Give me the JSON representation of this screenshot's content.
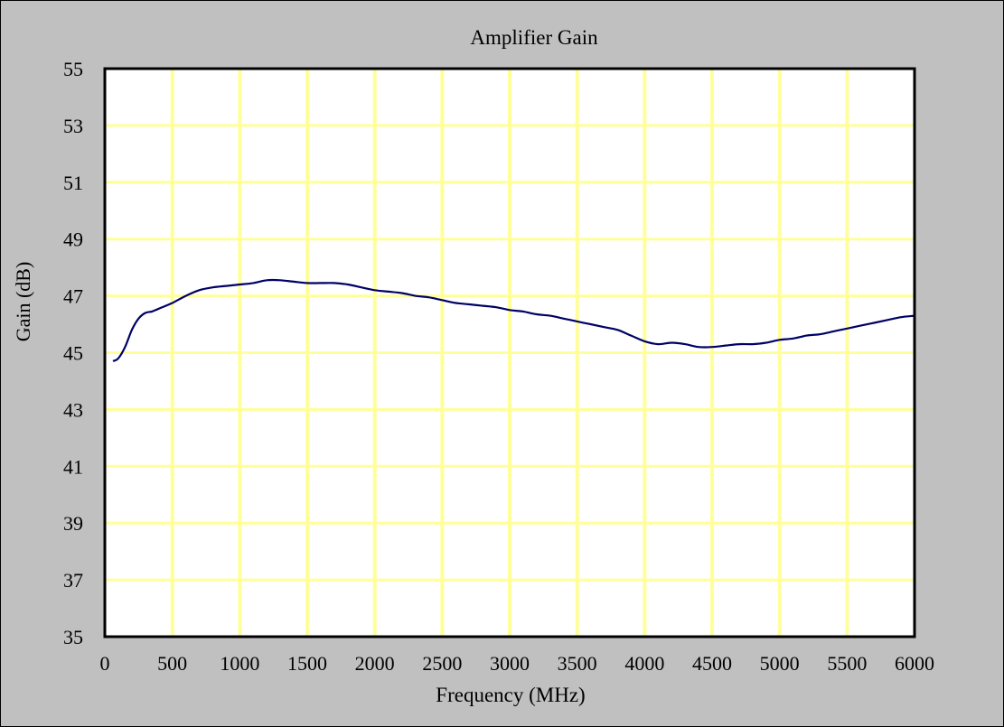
{
  "chart_data": {
    "type": "line",
    "title": "Amplifier Gain",
    "xlabel": "Frequency (MHz)",
    "ylabel": "Gain (dB)",
    "xlim": [
      0,
      6000
    ],
    "ylim": [
      35,
      55
    ],
    "xticks": [
      0,
      500,
      1000,
      1500,
      2000,
      2500,
      3000,
      3500,
      4000,
      4500,
      5000,
      5500,
      6000
    ],
    "yticks": [
      35,
      37,
      39,
      41,
      43,
      45,
      47,
      49,
      51,
      53,
      55
    ],
    "grid": true,
    "legend": "none",
    "colors": {
      "plot_background": "#ffffff",
      "gridline": "#ffff99",
      "series": "#000066",
      "frame": "#c0c0c0"
    },
    "series": [
      {
        "x": [
          60,
          100,
          150,
          200,
          250,
          300,
          350,
          400,
          500,
          600,
          700,
          800,
          900,
          1000,
          1100,
          1200,
          1300,
          1400,
          1500,
          1600,
          1700,
          1800,
          1900,
          2000,
          2100,
          2200,
          2300,
          2400,
          2500,
          2600,
          2700,
          2800,
          2900,
          3000,
          3100,
          3200,
          3300,
          3400,
          3500,
          3600,
          3700,
          3800,
          3900,
          4000,
          4100,
          4200,
          4300,
          4400,
          4500,
          4600,
          4700,
          4800,
          4900,
          5000,
          5100,
          5200,
          5300,
          5400,
          5500,
          5600,
          5700,
          5800,
          5900,
          6000
        ],
        "values": [
          44.7,
          44.8,
          45.2,
          45.8,
          46.2,
          46.4,
          46.45,
          46.55,
          46.75,
          47.0,
          47.2,
          47.3,
          47.35,
          47.4,
          47.45,
          47.55,
          47.55,
          47.5,
          47.45,
          47.45,
          47.45,
          47.4,
          47.3,
          47.2,
          47.15,
          47.1,
          47.0,
          46.95,
          46.85,
          46.75,
          46.7,
          46.65,
          46.6,
          46.5,
          46.45,
          46.35,
          46.3,
          46.2,
          46.1,
          46.0,
          45.9,
          45.8,
          45.6,
          45.4,
          45.3,
          45.35,
          45.3,
          45.2,
          45.2,
          45.25,
          45.3,
          45.3,
          45.35,
          45.45,
          45.5,
          45.6,
          45.65,
          45.75,
          45.85,
          45.95,
          46.05,
          46.15,
          46.25,
          46.3
        ]
      }
    ]
  }
}
